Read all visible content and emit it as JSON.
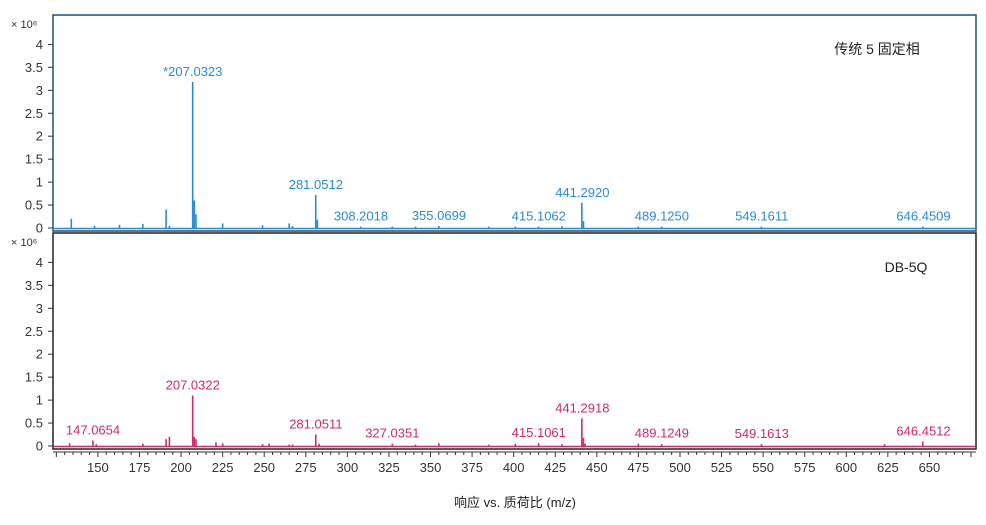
{
  "chart_data": {
    "type": "line",
    "xlabel": "响应 vs. 质荷比 (m/z)",
    "xlim": [
      123,
      678
    ],
    "x_ticks": [
      150,
      175,
      200,
      225,
      250,
      275,
      300,
      325,
      350,
      375,
      400,
      425,
      450,
      475,
      500,
      525,
      550,
      575,
      600,
      625,
      650
    ],
    "y_multiplier_label": "× 10⁶",
    "panels": [
      {
        "title": "传统 5 固定相",
        "color": "#2a8ad4",
        "frame_color": "#1f4e79",
        "ylim": [
          0,
          4.3
        ],
        "y_ticks": [
          "0",
          "0.5",
          "1",
          "1.5",
          "2",
          "2.5",
          "3",
          "3.5",
          "4"
        ],
        "peaks": [
          {
            "x": 134,
            "y": 0.2
          },
          {
            "x": 148,
            "y": 0.05
          },
          {
            "x": 163,
            "y": 0.07
          },
          {
            "x": 177,
            "y": 0.09
          },
          {
            "x": 191,
            "y": 0.4
          },
          {
            "x": 193,
            "y": 0.05
          },
          {
            "x": 207,
            "y": 3.18
          },
          {
            "x": 208,
            "y": 0.6
          },
          {
            "x": 209,
            "y": 0.3
          },
          {
            "x": 225,
            "y": 0.1
          },
          {
            "x": 249,
            "y": 0.06
          },
          {
            "x": 265,
            "y": 0.1
          },
          {
            "x": 267,
            "y": 0.04
          },
          {
            "x": 281,
            "y": 0.72
          },
          {
            "x": 282,
            "y": 0.18
          },
          {
            "x": 308,
            "y": 0.03
          },
          {
            "x": 327,
            "y": 0.03
          },
          {
            "x": 341,
            "y": 0.03
          },
          {
            "x": 355,
            "y": 0.04
          },
          {
            "x": 385,
            "y": 0.03
          },
          {
            "x": 401,
            "y": 0.03
          },
          {
            "x": 415,
            "y": 0.03
          },
          {
            "x": 429,
            "y": 0.04
          },
          {
            "x": 441,
            "y": 0.55
          },
          {
            "x": 442,
            "y": 0.15
          },
          {
            "x": 475,
            "y": 0.03
          },
          {
            "x": 489,
            "y": 0.03
          },
          {
            "x": 549,
            "y": 0.03
          },
          {
            "x": 646,
            "y": 0.03
          }
        ],
        "annotations": [
          {
            "x": 207.0323,
            "y": 3.18,
            "label": "*207.0323"
          },
          {
            "x": 281.0512,
            "y": 0.72,
            "label": "281.0512"
          },
          {
            "x": 308.2018,
            "y": 0.03,
            "label": "308.2018"
          },
          {
            "x": 355.0699,
            "y": 0.04,
            "label": "355.0699"
          },
          {
            "x": 415.1062,
            "y": 0.03,
            "label": "415.1062"
          },
          {
            "x": 441.292,
            "y": 0.55,
            "label": "441.2920"
          },
          {
            "x": 489.125,
            "y": 0.03,
            "label": "489.1250"
          },
          {
            "x": 549.1611,
            "y": 0.03,
            "label": "549.1611"
          },
          {
            "x": 646.4509,
            "y": 0.03,
            "label": "646.4509"
          }
        ]
      },
      {
        "title": "DB-5Q",
        "color": "#cc2a6e",
        "frame_color": "#222222",
        "ylim": [
          0,
          4.3
        ],
        "y_ticks": [
          "0",
          "0.5",
          "1",
          "1.5",
          "2",
          "2.5",
          "3",
          "3.5",
          "4"
        ],
        "peaks": [
          {
            "x": 133,
            "y": 0.06
          },
          {
            "x": 147,
            "y": 0.12
          },
          {
            "x": 149,
            "y": 0.04
          },
          {
            "x": 177,
            "y": 0.05
          },
          {
            "x": 191,
            "y": 0.15
          },
          {
            "x": 193,
            "y": 0.2
          },
          {
            "x": 207,
            "y": 1.1
          },
          {
            "x": 208,
            "y": 0.2
          },
          {
            "x": 209,
            "y": 0.15
          },
          {
            "x": 221,
            "y": 0.08
          },
          {
            "x": 225,
            "y": 0.06
          },
          {
            "x": 249,
            "y": 0.04
          },
          {
            "x": 253,
            "y": 0.05
          },
          {
            "x": 265,
            "y": 0.03
          },
          {
            "x": 267,
            "y": 0.03
          },
          {
            "x": 281,
            "y": 0.25
          },
          {
            "x": 283,
            "y": 0.05
          },
          {
            "x": 327,
            "y": 0.05
          },
          {
            "x": 341,
            "y": 0.03
          },
          {
            "x": 355,
            "y": 0.06
          },
          {
            "x": 385,
            "y": 0.03
          },
          {
            "x": 401,
            "y": 0.05
          },
          {
            "x": 415,
            "y": 0.06
          },
          {
            "x": 429,
            "y": 0.04
          },
          {
            "x": 441,
            "y": 0.6
          },
          {
            "x": 442,
            "y": 0.18
          },
          {
            "x": 443,
            "y": 0.05
          },
          {
            "x": 475,
            "y": 0.05
          },
          {
            "x": 489,
            "y": 0.04
          },
          {
            "x": 549,
            "y": 0.04
          },
          {
            "x": 623,
            "y": 0.04
          },
          {
            "x": 646,
            "y": 0.1
          }
        ],
        "annotations": [
          {
            "x": 147.0654,
            "y": 0.12,
            "label": "147.0654"
          },
          {
            "x": 207.0322,
            "y": 1.1,
            "label": "207.0322"
          },
          {
            "x": 281.0511,
            "y": 0.25,
            "label": "281.0511"
          },
          {
            "x": 327.0351,
            "y": 0.05,
            "label": "327.0351"
          },
          {
            "x": 415.1061,
            "y": 0.06,
            "label": "415.1061"
          },
          {
            "x": 441.2918,
            "y": 0.6,
            "label": "441.2918"
          },
          {
            "x": 489.1249,
            "y": 0.05,
            "label": "489.1249"
          },
          {
            "x": 549.1613,
            "y": 0.04,
            "label": "549.1613"
          },
          {
            "x": 646.4512,
            "y": 0.1,
            "label": "646.4512"
          }
        ]
      }
    ]
  }
}
